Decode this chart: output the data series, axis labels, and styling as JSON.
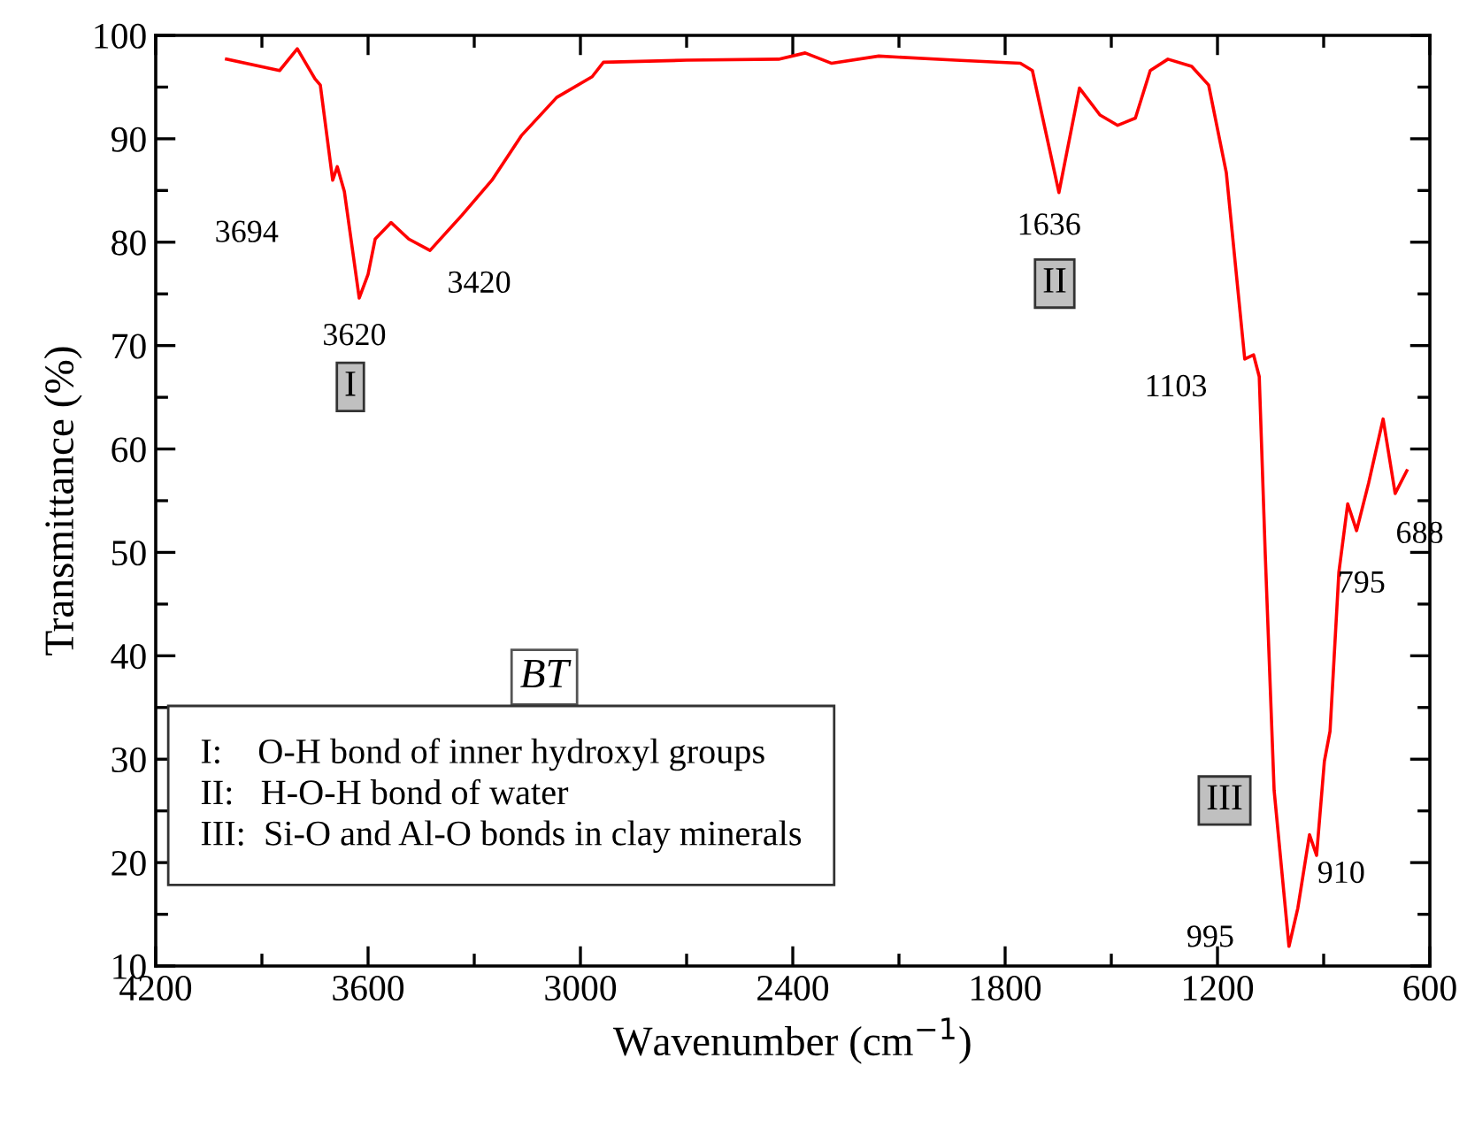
{
  "chart_data": {
    "type": "line",
    "xlabel": "Wavenumber (cm$^{−1}$)",
    "ylabel": "Transmittance (%)",
    "xlim": [
      4200,
      600
    ],
    "xticks": [
      4200,
      3600,
      3000,
      2400,
      1800,
      1200,
      600
    ],
    "ylim": [
      10,
      100
    ],
    "yticks": [
      10,
      20,
      30,
      40,
      50,
      60,
      70,
      80,
      90,
      100
    ],
    "grid": false,
    "legend": false,
    "marker": "none",
    "line_style": "solid",
    "series": [
      {
        "color": "#ff0000",
        "x": [
          4000,
          3850,
          3800,
          3750,
          3735,
          3700,
          3687,
          3667,
          3625,
          3600,
          3580,
          3535,
          3485,
          3425,
          3335,
          3250,
          3167,
          3067,
          2967,
          2935,
          2700,
          2440,
          2365,
          2290,
          2157,
          1940,
          1757,
          1723,
          1648,
          1590,
          1532,
          1482,
          1432,
          1390,
          1340,
          1273,
          1225,
          1175,
          1123,
          1098,
          1082,
          1065,
          1040,
          998,
          973,
          940,
          920,
          898,
          882,
          857,
          832,
          807,
          773,
          732,
          698,
          665
        ],
        "values": [
          97.7,
          96.6,
          98.7,
          95.8,
          95.2,
          86.0,
          87.3,
          84.9,
          74.6,
          76.9,
          80.3,
          81.9,
          80.3,
          79.2,
          82.6,
          86.0,
          90.3,
          94.0,
          96.0,
          97.4,
          97.6,
          97.7,
          98.3,
          97.3,
          98.0,
          97.6,
          97.3,
          96.6,
          84.8,
          94.9,
          92.3,
          91.3,
          92.0,
          96.6,
          97.7,
          97.0,
          95.2,
          86.7,
          68.7,
          69.1,
          67.0,
          49.8,
          27.0,
          11.9,
          15.6,
          22.7,
          20.7,
          29.8,
          32.7,
          48.1,
          54.7,
          52.1,
          56.7,
          62.9,
          55.7,
          57.9
        ]
      }
    ],
    "annotations": [
      {
        "text": "3694",
        "x": 3700,
        "y": 86.0
      },
      {
        "text": "3620",
        "x": 3625,
        "y": 74.6
      },
      {
        "text": "3420",
        "x": 3425,
        "y": 79.2
      },
      {
        "text": "1636",
        "x": 1648,
        "y": 84.8
      },
      {
        "text": "1103",
        "x": 1123,
        "y": 68.7
      },
      {
        "text": "995",
        "x": 998,
        "y": 11.9
      },
      {
        "text": "910",
        "x": 920,
        "y": 20.7
      },
      {
        "text": "795",
        "x": 807,
        "y": 52.1
      },
      {
        "text": "688",
        "x": 698,
        "y": 55.7
      },
      {
        "text": "I",
        "x": 3650,
        "y": 66
      },
      {
        "text": "II",
        "x": 1660,
        "y": 76
      },
      {
        "text": "III",
        "x": 1180,
        "y": 26
      },
      "BT",
      "I:    O-H bond of inner hydroxyl groups\nII:   H-O-H bond of water\nIII:  Si-O and Al-O bonds in clay minerals"
    ]
  }
}
